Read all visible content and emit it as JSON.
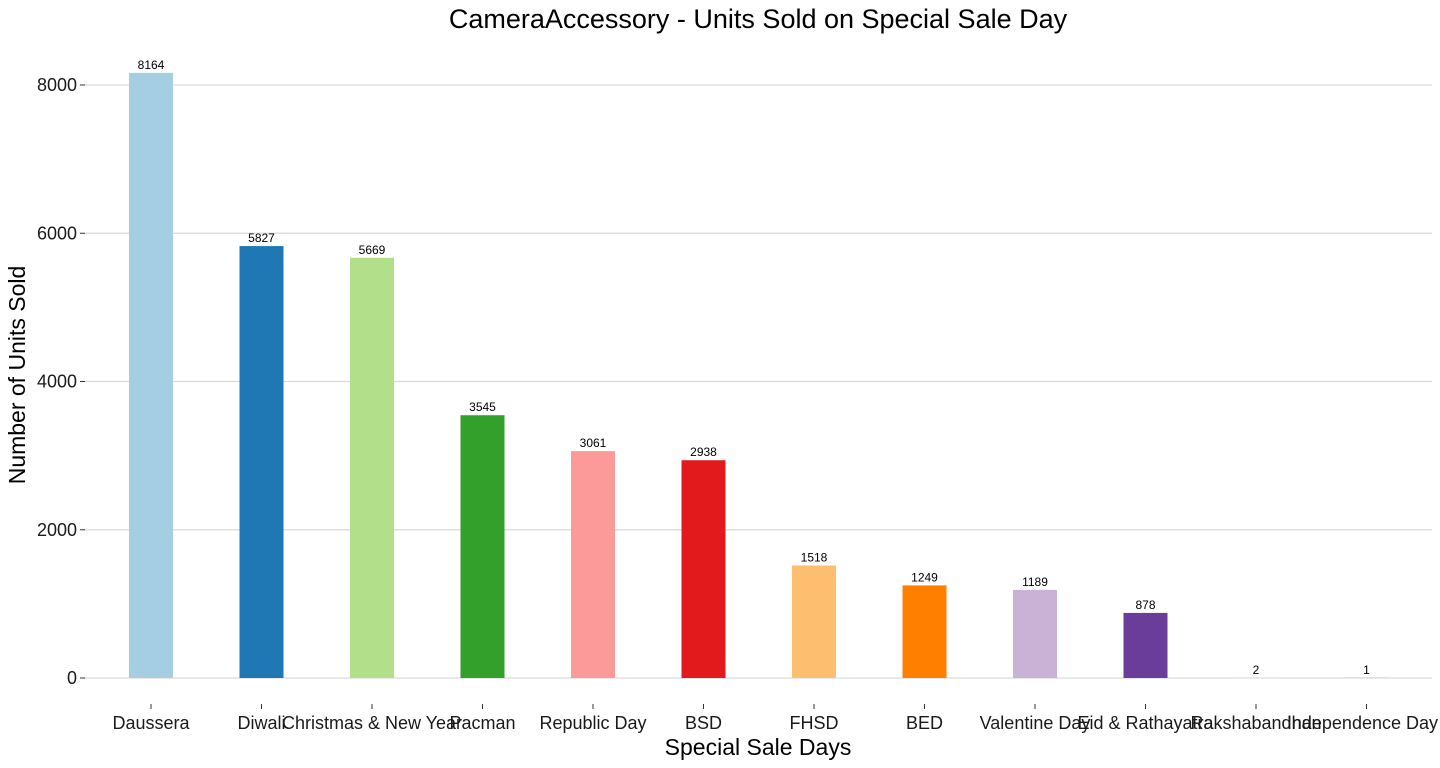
{
  "chart_data": {
    "type": "bar",
    "title": "CameraAccessory - Units Sold on Special Sale Day",
    "xlabel": "Special Sale Days",
    "ylabel": "Number of Units Sold",
    "categories": [
      "Daussera",
      "Diwali",
      "Christmas & New Year",
      "Pacman",
      "Republic Day",
      "BSD",
      "FHSD",
      "BED",
      "Valentine Day",
      "Eid & Rathayatra",
      "Rakshabandhan",
      "Independence Day"
    ],
    "values": [
      8164,
      5827,
      5669,
      3545,
      3061,
      2938,
      1518,
      1249,
      1189,
      878,
      2,
      1
    ],
    "value_labels": [
      "8164",
      "5827",
      "5669",
      "3545",
      "3061",
      "2938",
      "1518",
      "1249",
      "1189",
      "878",
      "2",
      "1"
    ],
    "colors": [
      "#A6CEE3",
      "#1F78B4",
      "#B2DF8A",
      "#33A02C",
      "#FB9A99",
      "#E31A1C",
      "#FDBF6F",
      "#FF7F00",
      "#CAB2D6",
      "#6A3D9A",
      "#FFFF99",
      "#B15928"
    ],
    "yticks": [
      0,
      2000,
      4000,
      6000,
      8000
    ],
    "ytick_labels": [
      "0",
      "2000",
      "4000",
      "6000",
      "8000"
    ],
    "ylim": [
      0,
      8164
    ],
    "grid": "horizontal",
    "legend": "none"
  }
}
